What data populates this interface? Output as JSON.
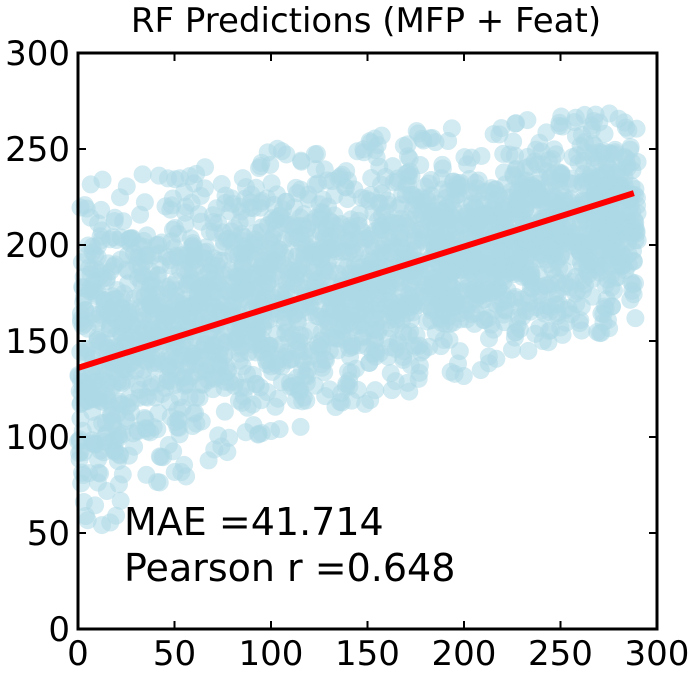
{
  "chart_data": {
    "type": "scatter",
    "title": "RF Predictions (MFP + Feat)",
    "xlabel": "",
    "ylabel": "",
    "xlim": [
      0,
      300
    ],
    "ylim": [
      0,
      300
    ],
    "x_ticks": [
      "0",
      "50",
      "100",
      "150",
      "200",
      "250",
      "300"
    ],
    "y_ticks": [
      "0",
      "50",
      "100",
      "150",
      "200",
      "250",
      "300"
    ],
    "grid": false,
    "point_color": "#add8e6",
    "point_alpha": 0.55,
    "x_range_of_points": [
      0,
      290
    ],
    "series": [
      {
        "kind": "regression-line",
        "color": "#ff0000",
        "x": [
          0,
          288
        ],
        "y": [
          136,
          227
        ]
      }
    ],
    "point_cloud_band": [
      {
        "x": 0,
        "y_low": 45,
        "y_high": 235
      },
      {
        "x": 50,
        "y_low": 75,
        "y_high": 240
      },
      {
        "x": 100,
        "y_low": 100,
        "y_high": 250
      },
      {
        "x": 150,
        "y_low": 115,
        "y_high": 258
      },
      {
        "x": 200,
        "y_low": 130,
        "y_high": 262
      },
      {
        "x": 250,
        "y_low": 150,
        "y_high": 268
      },
      {
        "x": 290,
        "y_low": 155,
        "y_high": 270
      }
    ],
    "annotations": [
      {
        "label": "MAE =41.714"
      },
      {
        "label": "Pearson r =0.648"
      }
    ]
  }
}
